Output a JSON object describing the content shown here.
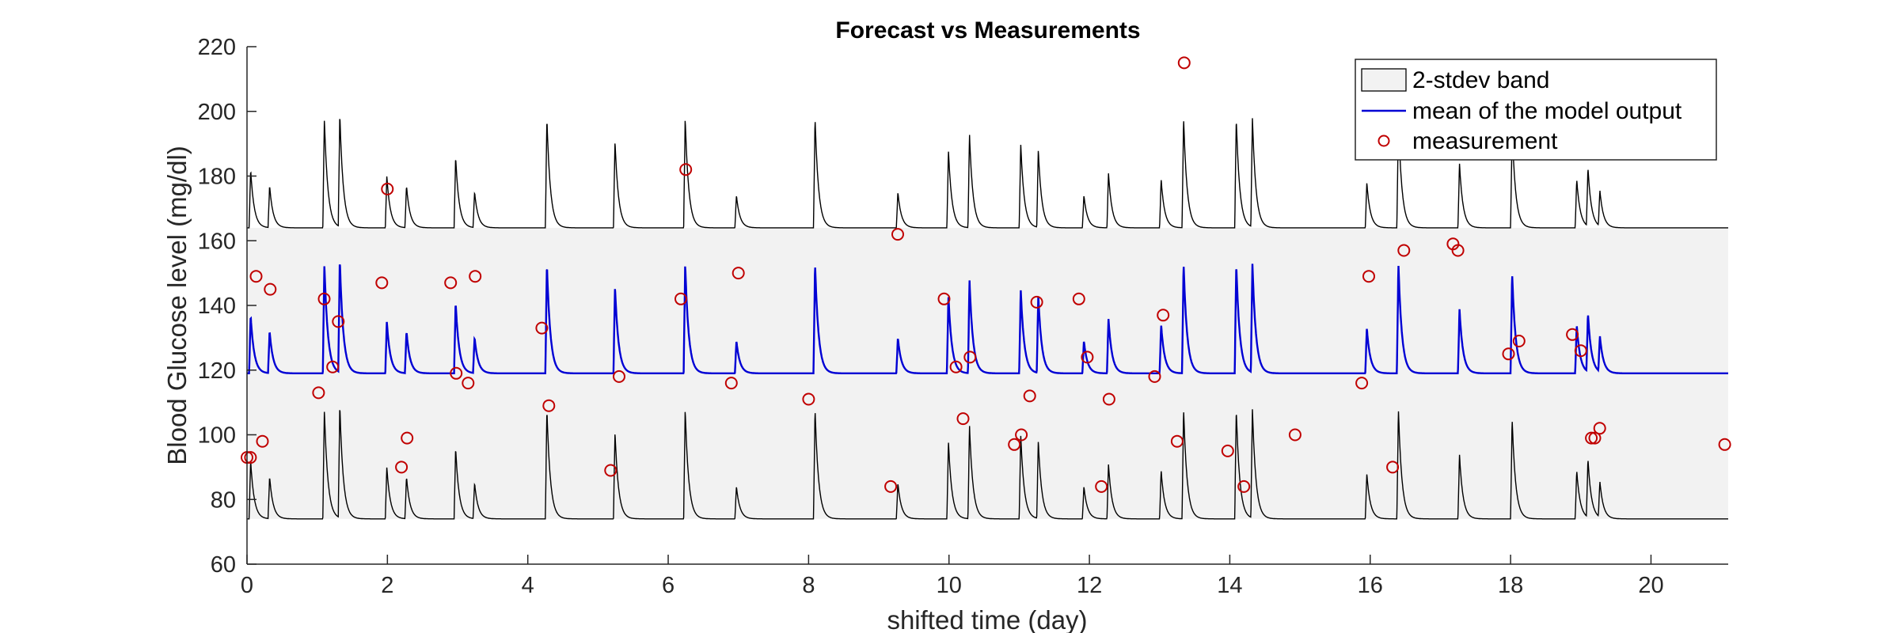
{
  "chart_data": {
    "type": "line",
    "title": "Forecast vs Measurements",
    "xlabel": "shifted time (day)",
    "ylabel": "Blood Glucose level (mg/dl)",
    "xlim": [
      0,
      21.1
    ],
    "ylim": [
      60,
      220
    ],
    "xticks": [
      0,
      2,
      4,
      6,
      8,
      10,
      12,
      14,
      16,
      18,
      20
    ],
    "yticks": [
      60,
      80,
      100,
      120,
      140,
      160,
      180,
      200,
      220
    ],
    "grid": false,
    "legend_location": "top-right",
    "baseline_mean": 119,
    "baseline_upper": 164,
    "baseline_lower": 74,
    "meal_peaks": [
      {
        "t": 0.03,
        "amp": 18
      },
      {
        "t": 0.3,
        "amp": 13
      },
      {
        "t": 1.08,
        "amp": 34
      },
      {
        "t": 1.3,
        "amp": 35
      },
      {
        "t": 1.97,
        "amp": 16
      },
      {
        "t": 2.25,
        "amp": 13
      },
      {
        "t": 2.95,
        "amp": 22
      },
      {
        "t": 3.22,
        "amp": 11
      },
      {
        "t": 4.25,
        "amp": 34
      },
      {
        "t": 5.22,
        "amp": 27
      },
      {
        "t": 6.22,
        "amp": 34
      },
      {
        "t": 6.95,
        "amp": 10
      },
      {
        "t": 8.07,
        "amp": 34
      },
      {
        "t": 9.25,
        "amp": 11
      },
      {
        "t": 9.97,
        "amp": 24
      },
      {
        "t": 10.27,
        "amp": 29
      },
      {
        "t": 11.0,
        "amp": 26
      },
      {
        "t": 11.25,
        "amp": 24
      },
      {
        "t": 11.9,
        "amp": 10
      },
      {
        "t": 12.25,
        "amp": 17
      },
      {
        "t": 13.0,
        "amp": 15
      },
      {
        "t": 13.32,
        "amp": 34
      },
      {
        "t": 14.07,
        "amp": 34
      },
      {
        "t": 14.3,
        "amp": 34
      },
      {
        "t": 15.93,
        "amp": 14
      },
      {
        "t": 16.38,
        "amp": 34
      },
      {
        "t": 17.25,
        "amp": 20
      },
      {
        "t": 18.0,
        "amp": 31
      },
      {
        "t": 18.92,
        "amp": 15
      },
      {
        "t": 19.08,
        "amp": 18
      },
      {
        "t": 19.25,
        "amp": 11
      }
    ],
    "series": [
      {
        "name": "2-stdev band",
        "kind": "band",
        "fill": "#f2f2f2",
        "edge": "#000000"
      },
      {
        "name": "mean of the model output",
        "kind": "line",
        "color": "#0000d4"
      },
      {
        "name": "measurement",
        "kind": "scatter",
        "color": "#c00000",
        "points": [
          [
            0.0,
            93
          ],
          [
            0.05,
            93
          ],
          [
            0.13,
            149
          ],
          [
            0.22,
            98
          ],
          [
            0.33,
            145
          ],
          [
            1.02,
            113
          ],
          [
            1.1,
            142
          ],
          [
            1.22,
            121
          ],
          [
            1.3,
            135
          ],
          [
            1.92,
            147
          ],
          [
            2.0,
            176
          ],
          [
            2.2,
            90
          ],
          [
            2.28,
            99
          ],
          [
            2.9,
            147
          ],
          [
            2.98,
            119
          ],
          [
            3.15,
            116
          ],
          [
            3.25,
            149
          ],
          [
            4.2,
            133
          ],
          [
            4.3,
            109
          ],
          [
            5.18,
            89
          ],
          [
            5.3,
            118
          ],
          [
            6.18,
            142
          ],
          [
            6.25,
            182
          ],
          [
            6.9,
            116
          ],
          [
            7.0,
            150
          ],
          [
            8.0,
            111
          ],
          [
            9.17,
            84
          ],
          [
            9.27,
            162
          ],
          [
            9.93,
            142
          ],
          [
            10.1,
            121
          ],
          [
            10.2,
            105
          ],
          [
            10.3,
            124
          ],
          [
            10.93,
            97
          ],
          [
            11.03,
            100
          ],
          [
            11.15,
            112
          ],
          [
            11.25,
            141
          ],
          [
            11.85,
            142
          ],
          [
            11.97,
            124
          ],
          [
            12.17,
            84
          ],
          [
            12.28,
            111
          ],
          [
            12.93,
            118
          ],
          [
            13.05,
            137
          ],
          [
            13.25,
            98
          ],
          [
            13.35,
            215
          ],
          [
            13.97,
            95
          ],
          [
            14.2,
            84
          ],
          [
            14.93,
            100
          ],
          [
            15.88,
            116
          ],
          [
            15.98,
            149
          ],
          [
            16.32,
            90
          ],
          [
            16.48,
            157
          ],
          [
            17.18,
            159
          ],
          [
            17.25,
            157
          ],
          [
            17.97,
            125
          ],
          [
            18.12,
            129
          ],
          [
            18.88,
            131
          ],
          [
            19.0,
            126
          ],
          [
            19.15,
            99
          ],
          [
            19.2,
            99
          ],
          [
            19.27,
            102
          ],
          [
            21.05,
            97
          ]
        ]
      }
    ]
  }
}
